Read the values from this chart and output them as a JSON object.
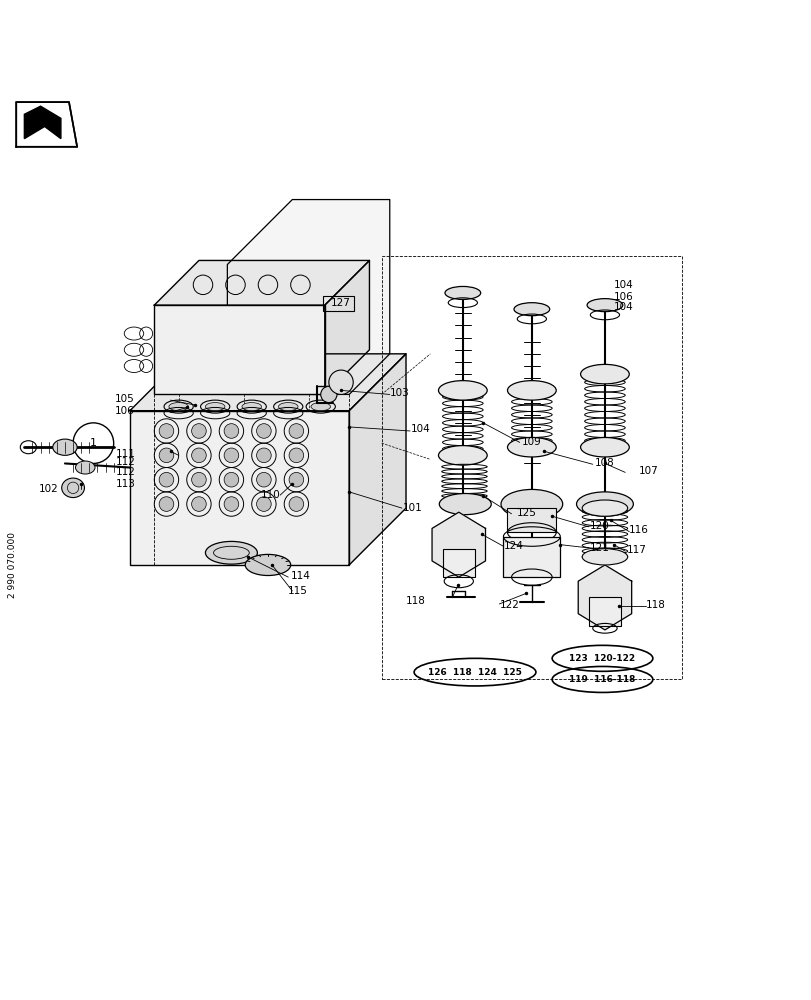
{
  "bg_color": "#ffffff",
  "line_color": "#000000",
  "title": "",
  "fig_width": 8.12,
  "fig_height": 10.0,
  "dpi": 100
}
